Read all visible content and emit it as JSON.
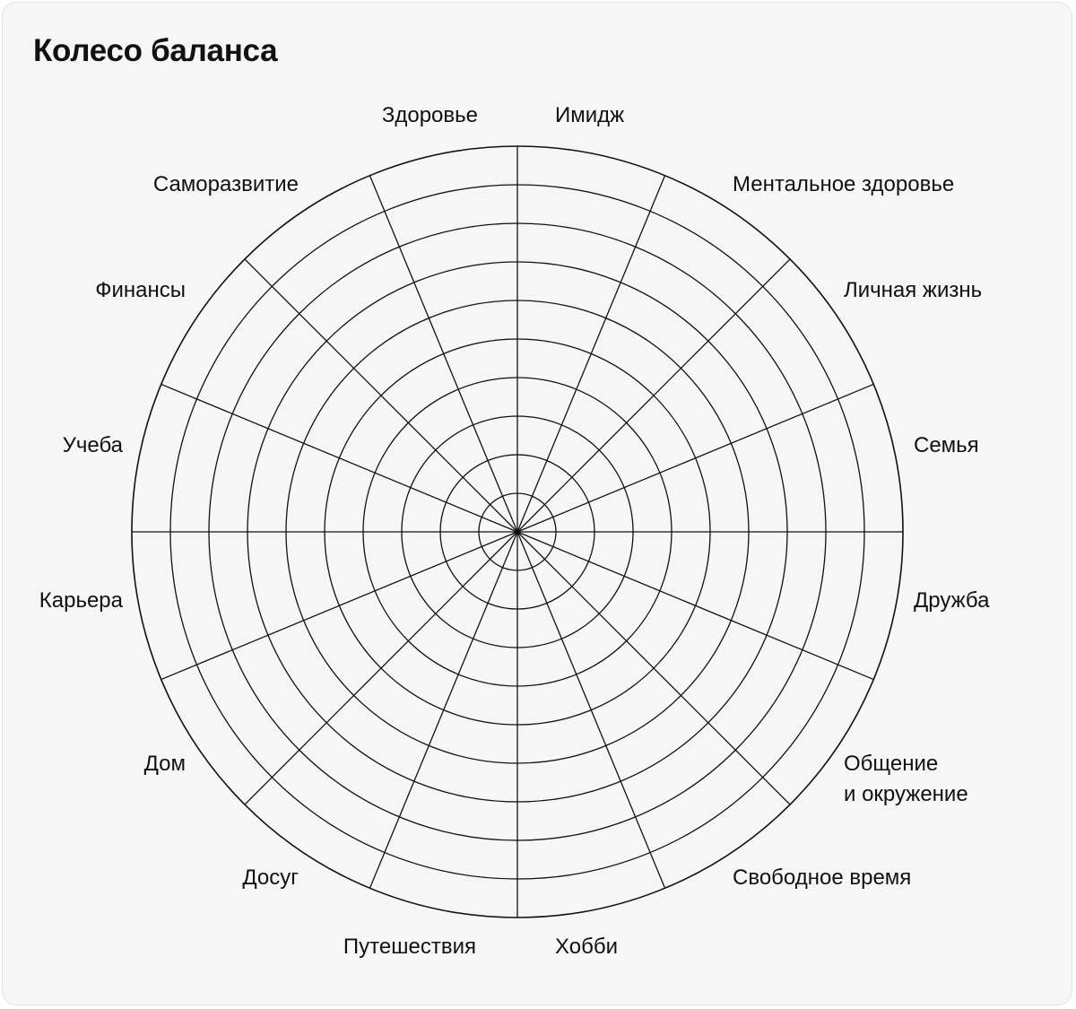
{
  "title": "Колесо баланса",
  "segments": [
    "Имидж",
    "Ментальное здоровье",
    "Личная жизнь",
    "Семья",
    "Дружба",
    "Общение\nи окружение",
    "Свободное время",
    "Хобби",
    "Путешествия",
    "Досуг",
    "Дом",
    "Карьера",
    "Учеба",
    "Финансы",
    "Саморазвитие",
    "Здоровье"
  ],
  "rings": 10,
  "colors": {
    "line": "#111111",
    "card": "#f6f6f6",
    "text": "#111111"
  }
}
